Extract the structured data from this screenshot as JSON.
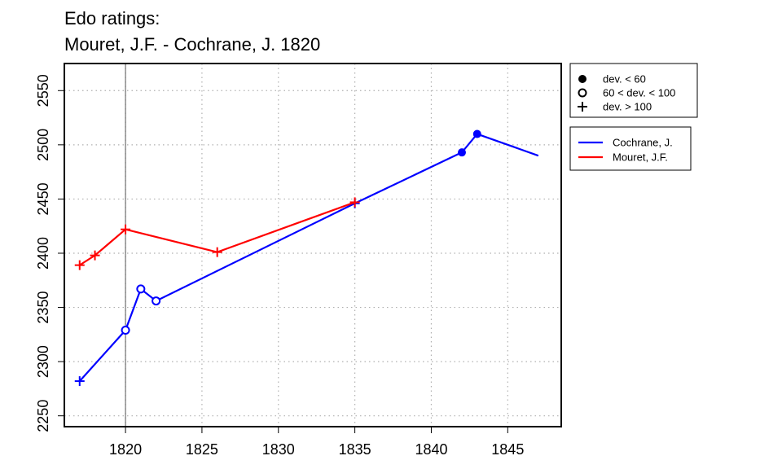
{
  "chart_data": {
    "type": "line",
    "title": "Edo ratings:",
    "subtitle": "Mouret, J.F. - Cochrane, J. 1820",
    "xlabel": "",
    "ylabel": "",
    "xlim": [
      1816,
      1848.5
    ],
    "ylim": [
      2240,
      2575
    ],
    "x_ticks": [
      1820,
      1825,
      1830,
      1835,
      1840,
      1845
    ],
    "y_ticks": [
      2250,
      2300,
      2350,
      2400,
      2450,
      2500,
      2550
    ],
    "grid": true,
    "reference_line_x": 1820,
    "marker_legend": [
      {
        "label": "dev. < 60",
        "marker": "filled-circle"
      },
      {
        "label": "60 < dev. < 100",
        "marker": "open-circle"
      },
      {
        "label": "dev. > 100",
        "marker": "plus"
      }
    ],
    "series": [
      {
        "name": "Cochrane, J.",
        "color": "#0000ff",
        "points": [
          {
            "x": 1817,
            "y": 2282,
            "marker": "plus"
          },
          {
            "x": 1820,
            "y": 2329,
            "marker": "open-circle"
          },
          {
            "x": 1821,
            "y": 2367,
            "marker": "open-circle"
          },
          {
            "x": 1822,
            "y": 2356,
            "marker": "open-circle"
          },
          {
            "x": 1835,
            "y": 2446,
            "marker": "plus"
          },
          {
            "x": 1842,
            "y": 2493,
            "marker": "filled-circle"
          },
          {
            "x": 1843,
            "y": 2510,
            "marker": "filled-circle"
          },
          {
            "x": 1847,
            "y": 2490,
            "marker": "none"
          }
        ]
      },
      {
        "name": "Mouret, J.F.",
        "color": "#ff0000",
        "points": [
          {
            "x": 1817,
            "y": 2389,
            "marker": "plus"
          },
          {
            "x": 1818,
            "y": 2398,
            "marker": "plus"
          },
          {
            "x": 1820,
            "y": 2422,
            "marker": "plus"
          },
          {
            "x": 1826,
            "y": 2401,
            "marker": "plus"
          },
          {
            "x": 1835,
            "y": 2447,
            "marker": "plus"
          }
        ]
      }
    ]
  }
}
